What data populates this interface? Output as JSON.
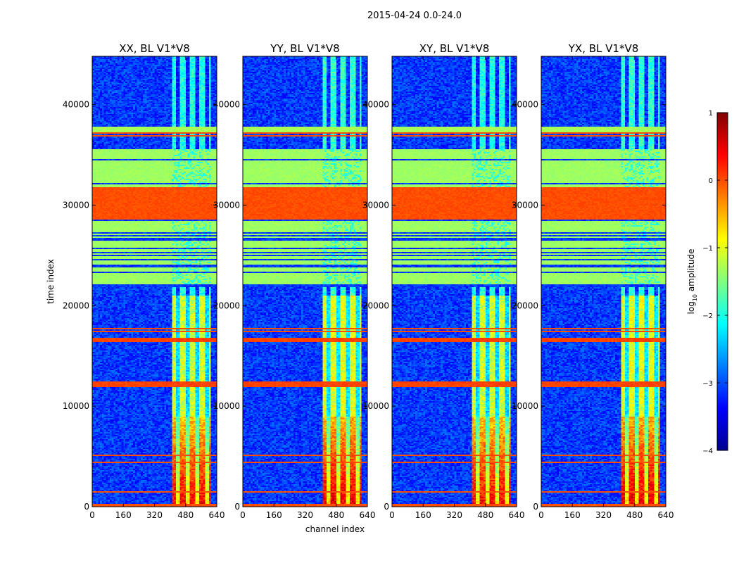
{
  "suptitle": "2015-04-24 0.0-24.0",
  "chart_data": {
    "type": "heatmap",
    "xlabel": "channel index",
    "ylabel": "time index",
    "xlim": [
      0,
      640
    ],
    "ylim": [
      0,
      44800
    ],
    "x_ticks": [
      0,
      160,
      320,
      480,
      640
    ],
    "x_tick_labels": [
      "0",
      "160",
      "320",
      "480",
      "640"
    ],
    "y_ticks": [
      0,
      10000,
      20000,
      30000,
      40000
    ],
    "y_tick_labels": [
      "0",
      "10000",
      "20000",
      "30000",
      "40000"
    ],
    "colormap": "jet",
    "colorbar": {
      "label_prefix": "log",
      "label_sub": "10",
      "label_suffix": " amplitude",
      "range": [
        -4,
        1
      ],
      "ticks": [
        1,
        0,
        -1,
        -2,
        -3,
        -4
      ],
      "tick_labels": [
        "1",
        "0",
        "−1",
        "−2",
        "−3",
        "−4"
      ]
    },
    "panels": [
      {
        "title": "XX, BL V1*V8"
      },
      {
        "title": "YY, BL V1*V8"
      },
      {
        "title": "XY, BL V1*V8"
      },
      {
        "title": "YX, BL V1*V8"
      }
    ],
    "features": {
      "noise_floor_log_amp": -3.1,
      "signal_band_channels": [
        410,
        610
      ],
      "signal_band_peak_log_amp": 0.4,
      "comb_gap_channels": [
        440,
        490,
        540,
        590
      ],
      "uniform_mid_band_time": [
        21800,
        35500
      ],
      "uniform_mid_band_log_amp": -1.35,
      "flag_bands": [
        {
          "start": 11900,
          "end": 12400,
          "log_amp": 0.05
        },
        {
          "start": 16400,
          "end": 16800,
          "log_amp": 0.05
        },
        {
          "start": 28600,
          "end": 31800,
          "log_amp": 0.0
        },
        {
          "start": 37300,
          "end": 37800,
          "log_amp": -1.3
        }
      ]
    }
  }
}
